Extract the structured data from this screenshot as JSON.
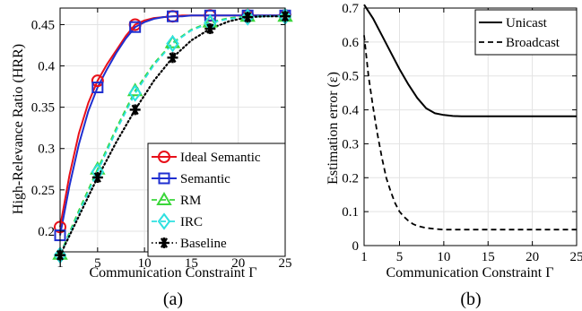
{
  "chart_data": [
    {
      "type": "line",
      "panel_label": "(a)",
      "xlabel": "Communication Constraint Γ",
      "ylabel": "High-Relevance Ratio (HRR)",
      "xlim": [
        1,
        25
      ],
      "ylim": [
        0.175,
        0.47
      ],
      "xticks": [
        1,
        5,
        10,
        15,
        20,
        25
      ],
      "yticks": [
        0.2,
        0.25,
        0.3,
        0.35,
        0.4,
        0.45
      ],
      "grid": true,
      "legend_position": "bottom-right",
      "marker_x": [
        1,
        5,
        9,
        13,
        17,
        21,
        25
      ],
      "series": [
        {
          "name": "Ideal Semantic",
          "color": "#e8101a",
          "line_style": "solid",
          "marker": "circle",
          "x": [
            1,
            2,
            3,
            4,
            5,
            6,
            7,
            8,
            9,
            10,
            11,
            12,
            13,
            14,
            15,
            16,
            17,
            18,
            19,
            20,
            21,
            22,
            23,
            24,
            25
          ],
          "values": [
            0.205,
            0.268,
            0.318,
            0.355,
            0.382,
            0.402,
            0.419,
            0.436,
            0.45,
            0.455,
            0.458,
            0.459,
            0.46,
            0.461,
            0.461,
            0.461,
            0.461,
            0.461,
            0.461,
            0.461,
            0.461,
            0.461,
            0.461,
            0.461,
            0.461
          ]
        },
        {
          "name": "Semantic",
          "color": "#1f2fd0",
          "line_style": "solid",
          "marker": "square",
          "x": [
            1,
            2,
            3,
            4,
            5,
            6,
            7,
            8,
            9,
            10,
            11,
            12,
            13,
            14,
            15,
            16,
            17,
            18,
            19,
            20,
            21,
            22,
            23,
            24,
            25
          ],
          "values": [
            0.195,
            0.255,
            0.305,
            0.345,
            0.374,
            0.396,
            0.416,
            0.433,
            0.447,
            0.453,
            0.457,
            0.459,
            0.46,
            0.46,
            0.461,
            0.461,
            0.461,
            0.461,
            0.461,
            0.461,
            0.461,
            0.461,
            0.461,
            0.461,
            0.461
          ]
        },
        {
          "name": "RM",
          "color": "#3ad63a",
          "line_style": "dashed",
          "marker": "triangle",
          "x": [
            1,
            3,
            5,
            7,
            9,
            11,
            13,
            15,
            17,
            19,
            21,
            23,
            25
          ],
          "values": [
            0.172,
            0.225,
            0.275,
            0.325,
            0.37,
            0.403,
            0.428,
            0.444,
            0.453,
            0.458,
            0.46,
            0.46,
            0.46
          ]
        },
        {
          "name": "IRC",
          "color": "#2ee0e0",
          "line_style": "dashed",
          "marker": "diamond",
          "x": [
            1,
            3,
            5,
            7,
            9,
            11,
            13,
            15,
            17,
            19,
            21,
            23,
            25
          ],
          "values": [
            0.171,
            0.222,
            0.272,
            0.322,
            0.367,
            0.401,
            0.427,
            0.443,
            0.452,
            0.457,
            0.459,
            0.46,
            0.46
          ]
        },
        {
          "name": "Baseline",
          "color": "#000000",
          "line_style": "dotted",
          "marker": "asterisk",
          "x": [
            1,
            3,
            5,
            7,
            9,
            11,
            13,
            15,
            17,
            19,
            21,
            23,
            25
          ],
          "values": [
            0.171,
            0.218,
            0.265,
            0.308,
            0.347,
            0.382,
            0.41,
            0.431,
            0.445,
            0.454,
            0.459,
            0.46,
            0.46
          ]
        }
      ]
    },
    {
      "type": "line",
      "panel_label": "(b)",
      "xlabel": "Communication Constraint Γ",
      "ylabel": "Estimation error (ε)",
      "xlim": [
        1,
        25
      ],
      "ylim": [
        0,
        0.7
      ],
      "xticks": [
        1,
        5,
        10,
        15,
        20,
        25
      ],
      "yticks": [
        0,
        0.1,
        0.2,
        0.3,
        0.4,
        0.5,
        0.6,
        0.7
      ],
      "grid": true,
      "legend_position": "top-right",
      "series": [
        {
          "name": "Unicast",
          "color": "#000000",
          "line_style": "solid",
          "x": [
            1,
            2,
            3,
            4,
            5,
            6,
            7,
            8,
            9,
            10,
            11,
            12,
            13,
            14,
            15,
            16,
            17,
            18,
            19,
            20,
            21,
            22,
            23,
            24,
            25
          ],
          "values": [
            0.71,
            0.67,
            0.62,
            0.57,
            0.52,
            0.475,
            0.435,
            0.405,
            0.39,
            0.385,
            0.382,
            0.381,
            0.381,
            0.381,
            0.381,
            0.381,
            0.381,
            0.381,
            0.381,
            0.381,
            0.381,
            0.381,
            0.381,
            0.381,
            0.381
          ]
        },
        {
          "name": "Broadcast",
          "color": "#000000",
          "line_style": "dashed",
          "x": [
            1,
            1.5,
            2,
            2.5,
            3,
            3.5,
            4,
            4.5,
            5,
            5.5,
            6,
            6.5,
            7,
            8,
            9,
            10,
            12,
            15,
            20,
            25
          ],
          "values": [
            0.62,
            0.5,
            0.41,
            0.33,
            0.26,
            0.2,
            0.16,
            0.125,
            0.1,
            0.085,
            0.073,
            0.064,
            0.058,
            0.052,
            0.049,
            0.047,
            0.047,
            0.047,
            0.047,
            0.047
          ]
        }
      ]
    }
  ]
}
